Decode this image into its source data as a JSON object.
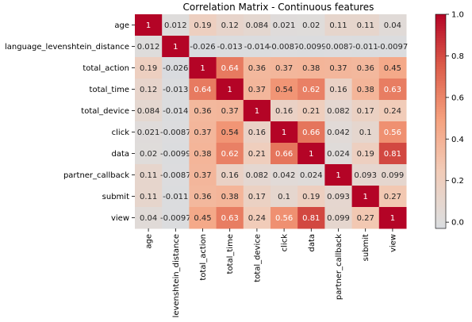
{
  "chart_data": {
    "type": "heatmap",
    "title": "Correlation Matrix - Continuous features",
    "xlabel": "",
    "ylabel": "",
    "labels": [
      "age",
      "language_levenshtein_distance",
      "total_action",
      "total_time",
      "total_device",
      "click",
      "data",
      "partner_callback",
      "submit",
      "view"
    ],
    "x_tick_labels": [
      "age",
      "levenshtein_distance",
      "total_action",
      "total_time",
      "total_device",
      "click",
      "data",
      "partner_callback",
      "submit",
      "view"
    ],
    "values": [
      [
        1,
        0.012,
        0.19,
        0.12,
        0.084,
        0.021,
        0.02,
        0.11,
        0.11,
        0.04
      ],
      [
        0.012,
        1,
        -0.026,
        -0.013,
        -0.014,
        -0.0087,
        -0.0099,
        -0.0087,
        -0.011,
        -0.0097
      ],
      [
        0.19,
        -0.026,
        1,
        0.64,
        0.36,
        0.37,
        0.38,
        0.37,
        0.36,
        0.45
      ],
      [
        0.12,
        -0.013,
        0.64,
        1,
        0.37,
        0.54,
        0.62,
        0.16,
        0.38,
        0.63
      ],
      [
        0.084,
        -0.014,
        0.36,
        0.37,
        1,
        0.16,
        0.21,
        0.082,
        0.17,
        0.24
      ],
      [
        0.021,
        -0.0087,
        0.37,
        0.54,
        0.16,
        1,
        0.66,
        0.042,
        0.1,
        0.56
      ],
      [
        0.02,
        -0.0099,
        0.38,
        0.62,
        0.21,
        0.66,
        1,
        0.024,
        0.19,
        0.81
      ],
      [
        0.11,
        -0.0087,
        0.37,
        0.16,
        0.082,
        0.042,
        0.024,
        1,
        0.093,
        0.099
      ],
      [
        0.11,
        -0.011,
        0.36,
        0.38,
        0.17,
        0.1,
        0.19,
        0.093,
        1,
        0.27
      ],
      [
        0.04,
        -0.0097,
        0.45,
        0.63,
        0.24,
        0.56,
        0.81,
        0.099,
        0.27,
        1
      ]
    ],
    "cell_labels": [
      [
        "1",
        "0.012",
        "0.19",
        "0.12",
        "0.084",
        "0.021",
        "0.02",
        "0.11",
        "0.11",
        "0.04"
      ],
      [
        "0.012",
        "1",
        "-0.026",
        "-0.013",
        "-0.014",
        "-0.0087",
        "-0.0099",
        "-0.0087",
        "-0.011",
        "-0.0097"
      ],
      [
        "0.19",
        "-0.026",
        "1",
        "0.64",
        "0.36",
        "0.37",
        "0.38",
        "0.37",
        "0.36",
        "0.45"
      ],
      [
        "0.12",
        "-0.013",
        "0.64",
        "1",
        "0.37",
        "0.54",
        "0.62",
        "0.16",
        "0.38",
        "0.63"
      ],
      [
        "0.084",
        "-0.014",
        "0.36",
        "0.37",
        "1",
        "0.16",
        "0.21",
        "0.082",
        "0.17",
        "0.24"
      ],
      [
        "0.021",
        "-0.0087",
        "0.37",
        "0.54",
        "0.16",
        "1",
        "0.66",
        "0.042",
        "0.1",
        "0.56"
      ],
      [
        "0.02",
        "-0.0099",
        "0.38",
        "0.62",
        "0.21",
        "0.66",
        "1",
        "0.024",
        "0.19",
        "0.81"
      ],
      [
        "0.11",
        "-0.0087",
        "0.37",
        "0.16",
        "0.082",
        "0.042",
        "0.024",
        "1",
        "0.093",
        "0.099"
      ],
      [
        "0.11",
        "-0.011",
        "0.36",
        "0.38",
        "0.17",
        "0.1",
        "0.19",
        "0.093",
        "1",
        "0.27"
      ],
      [
        "0.04",
        "-0.0097",
        "0.45",
        "0.63",
        "0.24",
        "0.56",
        "0.81",
        "0.099",
        "0.27",
        "1"
      ]
    ],
    "colormap": "coolwarm",
    "vmin": -0.03,
    "vmax": 1.0,
    "center": 0,
    "colorbar": {
      "ticks": [
        0.0,
        0.2,
        0.4,
        0.6,
        0.8,
        1.0
      ],
      "tick_labels": [
        "0.0",
        "0.2",
        "0.4",
        "0.6",
        "0.8",
        "1.0"
      ]
    },
    "grid": false,
    "legend": "colorbar-right"
  }
}
